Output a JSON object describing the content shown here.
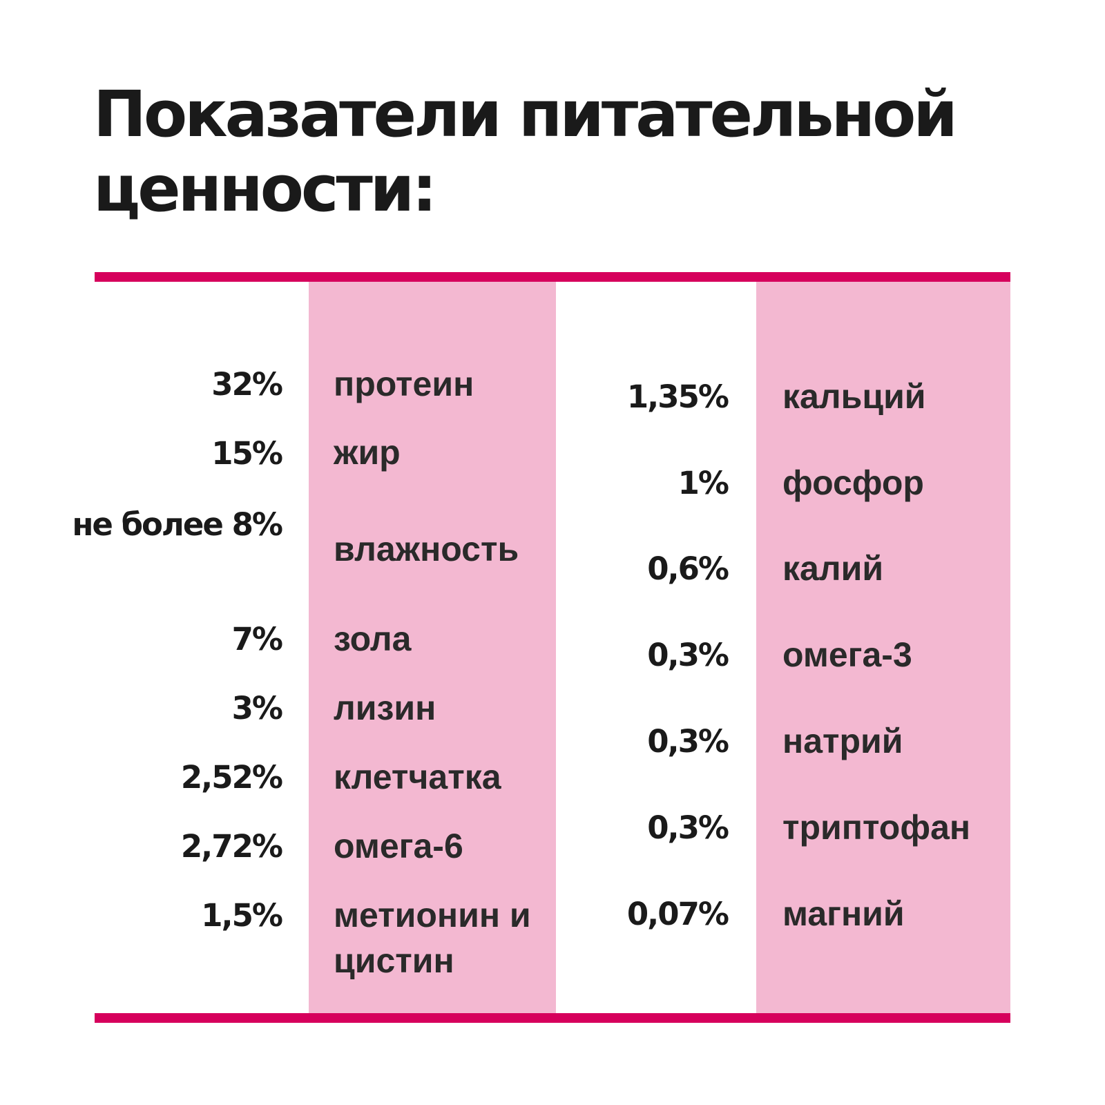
{
  "title": {
    "line1": "Показатели питательной",
    "line2": "ценности:"
  },
  "colors": {
    "accent": "#d6005c",
    "band": "#f3b8d1",
    "text": "#1a1a1a"
  },
  "column1": [
    {
      "value": "32%",
      "label": "протеин"
    },
    {
      "value": "15%",
      "label": "жир"
    },
    {
      "value": "не более 8%",
      "label": "влажность"
    },
    {
      "value": "7%",
      "label": "зола"
    },
    {
      "value": "3%",
      "label": "лизин"
    },
    {
      "value": "2,52%",
      "label": "клетчатка"
    },
    {
      "value": "2,72%",
      "label": "омега-6"
    },
    {
      "value": "1,5%",
      "label": "метионин и цистин"
    }
  ],
  "column2": [
    {
      "value": "1,35%",
      "label": "кальций"
    },
    {
      "value": "1%",
      "label": "фосфор"
    },
    {
      "value": "0,6%",
      "label": "калий"
    },
    {
      "value": "0,3%",
      "label": "омега-3"
    },
    {
      "value": "0,3%",
      "label": "натрий"
    },
    {
      "value": "0,3%",
      "label": "триптофан"
    },
    {
      "value": "0,07%",
      "label": "магний"
    }
  ]
}
